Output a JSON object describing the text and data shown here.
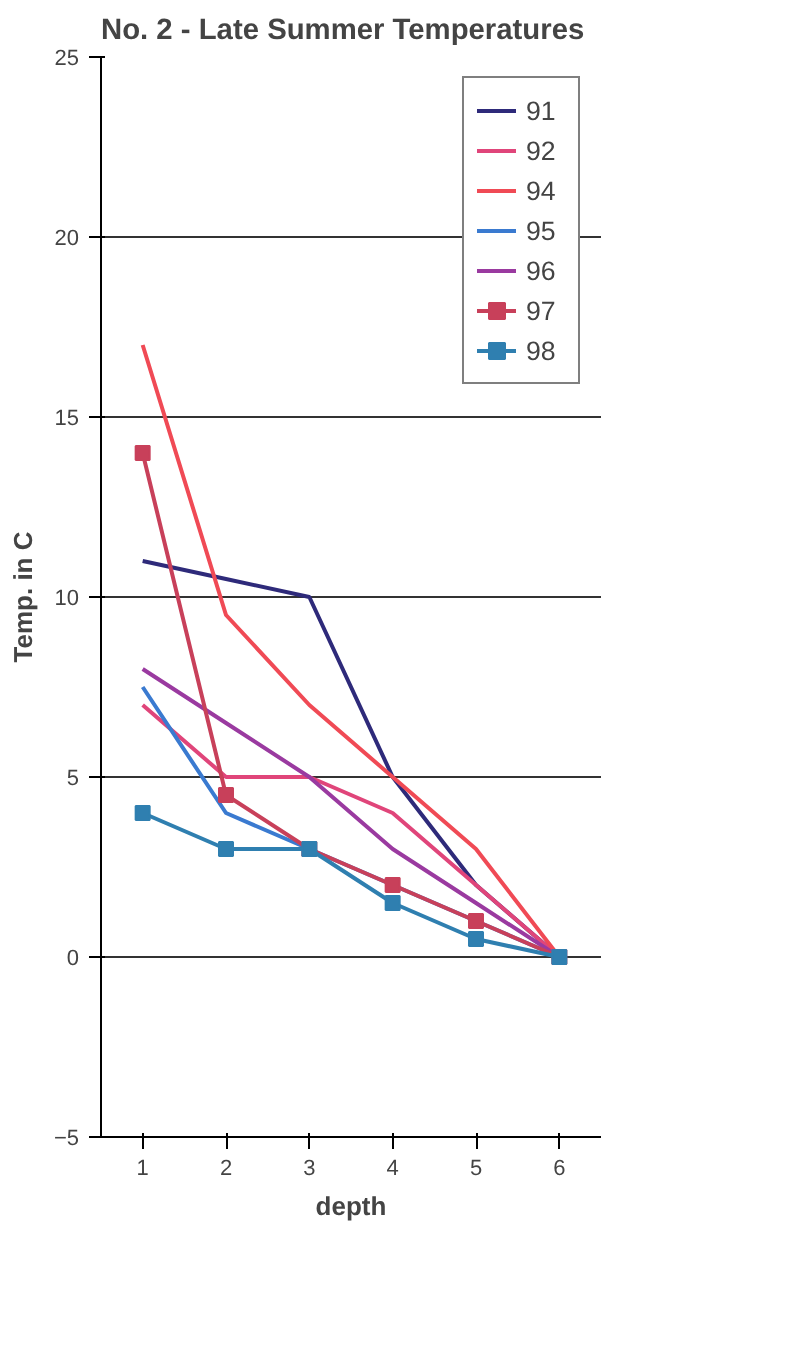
{
  "chart_data": {
    "type": "line",
    "title": "No. 2 - Late Summer Temperatures",
    "xlabel": "depth",
    "ylabel": "Temp. in C",
    "categories": [
      "1",
      "2",
      "3",
      "4",
      "5",
      "6"
    ],
    "ylim": [
      -5,
      25
    ],
    "yticks": [
      -5,
      0,
      5,
      10,
      15,
      20,
      25
    ],
    "grid": "y",
    "legend": "top right",
    "marker": "none",
    "series": [
      {
        "name": "91",
        "color": "#2e2a7a",
        "values": [
          11,
          10.5,
          10,
          5,
          2,
          0
        ]
      },
      {
        "name": "92",
        "color": "#e0457a",
        "values": [
          7,
          5,
          5,
          4,
          2,
          0
        ]
      },
      {
        "name": "94",
        "color": "#f04a55",
        "values": [
          17,
          9.5,
          7,
          5,
          3,
          0
        ]
      },
      {
        "name": "95",
        "color": "#3a7ad0",
        "values": [
          7.5,
          4,
          3,
          2,
          1,
          0
        ]
      },
      {
        "name": "96",
        "color": "#9a3aa0",
        "values": [
          8,
          6.5,
          5,
          3,
          1.5,
          0
        ]
      },
      {
        "name": "97",
        "color": "#c8405a",
        "marker": "square",
        "values": [
          14,
          4.5,
          3,
          2,
          1,
          0
        ]
      },
      {
        "name": "98",
        "color": "#2f7fb0",
        "marker": "square",
        "values": [
          4,
          3,
          3,
          1.5,
          0.5,
          0
        ]
      }
    ]
  }
}
